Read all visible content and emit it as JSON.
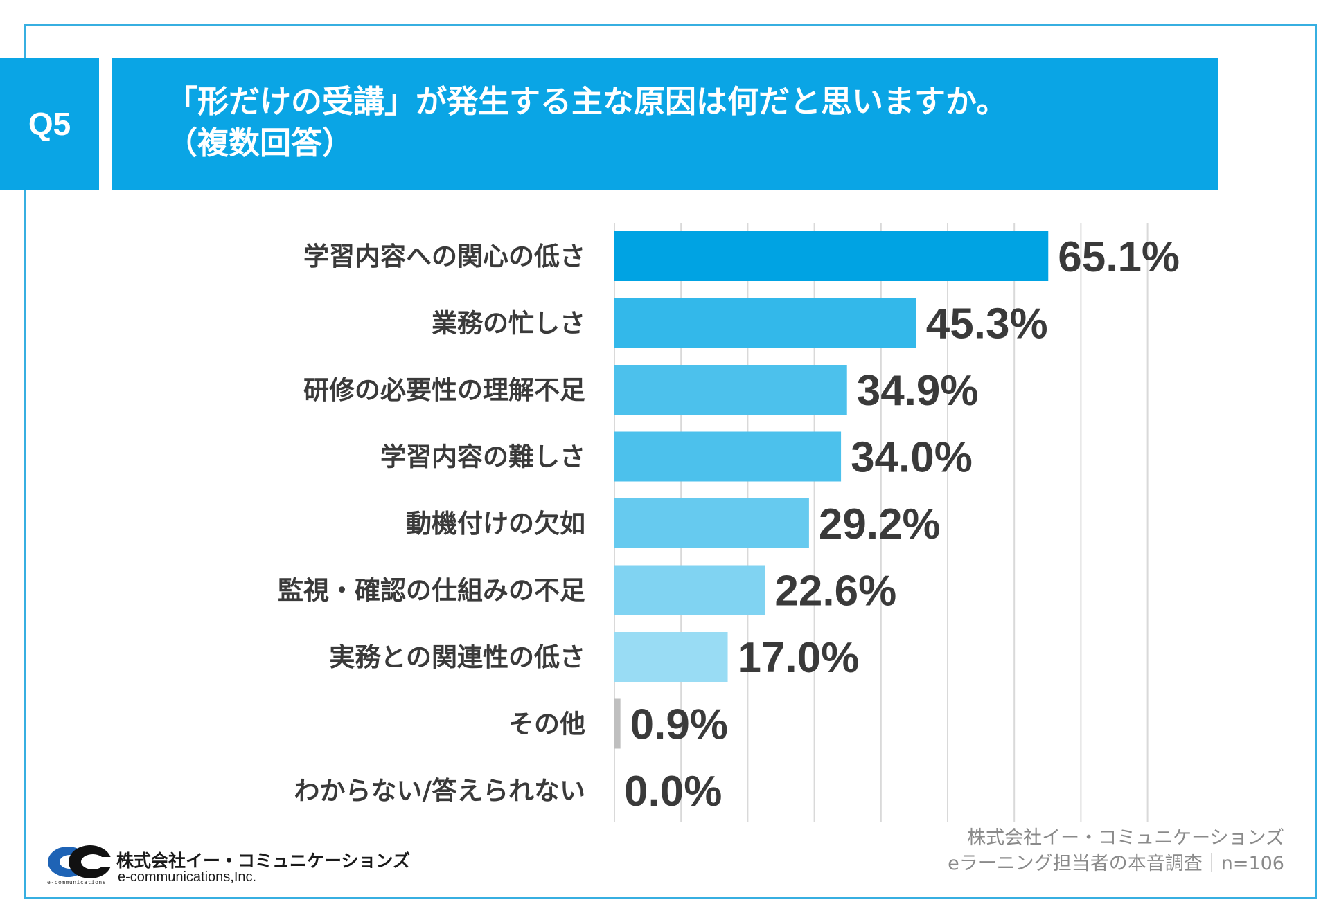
{
  "question": {
    "badge": "Q5",
    "title_line1": "「形だけの受講」が発生する主な原因は何だと思いますか。",
    "title_line2": "（複数回答）"
  },
  "chart_data": {
    "type": "bar",
    "orientation": "horizontal",
    "title": "「形だけの受講」が発生する主な原因は何だと思いますか。（複数回答）",
    "categories": [
      "学習内容への関心の低さ",
      "業務の忙しさ",
      "研修の必要性の理解不足",
      "学習内容の難しさ",
      "動機付けの欠如",
      "監視・確認の仕組みの不足",
      "実務との関連性の低さ",
      "その他",
      "わからない/答えられない"
    ],
    "values": [
      65.1,
      45.3,
      34.9,
      34.0,
      29.2,
      22.6,
      17.0,
      0.9,
      0.0
    ],
    "value_labels": [
      "65.1%",
      "45.3%",
      "34.9%",
      "34.0%",
      "29.2%",
      "22.6%",
      "17.0%",
      "0.9%",
      "0.0%"
    ],
    "bar_colors": [
      "#00a3e3",
      "#33b8ea",
      "#4cc1ec",
      "#4cc1ec",
      "#66caef",
      "#80d3f2",
      "#99dcf4",
      "#bfbfbf",
      "#bfbfbf"
    ],
    "xlim": [
      0,
      80
    ],
    "grid_step": 10,
    "unit": "%",
    "xlabel": "",
    "ylabel": ""
  },
  "footer": {
    "company_ja": "株式会社イー・コミュニケーションズ",
    "company_en": "e-communications,Inc.",
    "logo_caption": "e-communications",
    "source_line1": "株式会社イー・コミュニケーションズ",
    "source_line2": "eラーニング担当者の本音調査｜n=106"
  }
}
